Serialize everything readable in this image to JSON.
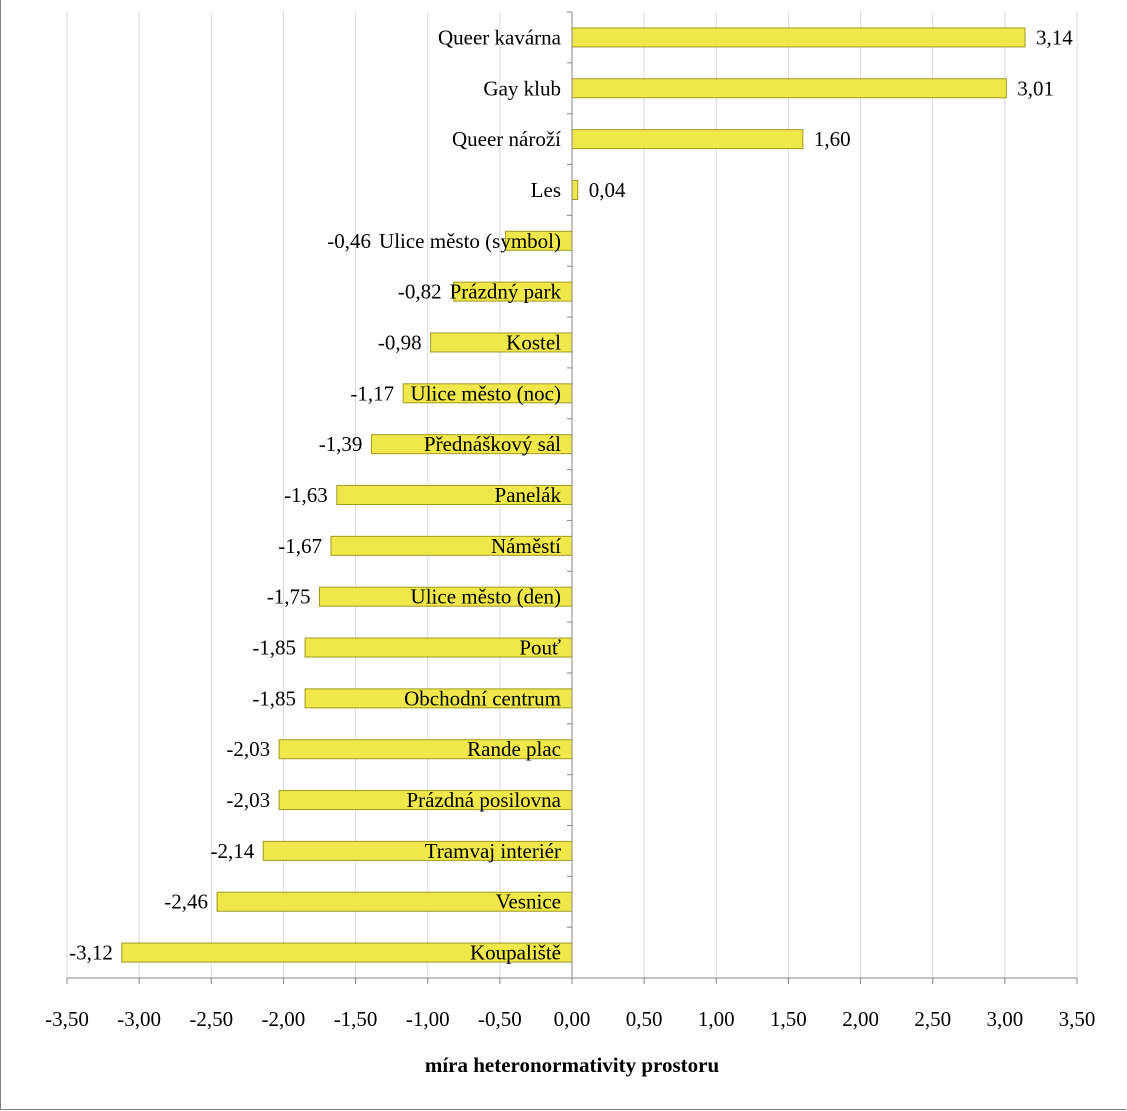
{
  "chart_data": {
    "type": "bar",
    "orientation": "horizontal",
    "categories": [
      "Queer kavárna",
      "Gay klub",
      "Queer nároží",
      "Les",
      "Ulice město (symbol)",
      "Prázdný park",
      "Kostel",
      "Ulice město (noc)",
      "Přednáškový sál",
      "Panelák",
      "Náměstí",
      "Ulice město (den)",
      "Pouť",
      "Obchodní centrum",
      "Rande plac",
      "Prázdná posilovna",
      "Tramvaj interiér",
      "Vesnice",
      "Koupaliště"
    ],
    "values": [
      3.14,
      3.01,
      1.6,
      0.04,
      -0.46,
      -0.82,
      -0.98,
      -1.17,
      -1.39,
      -1.63,
      -1.67,
      -1.75,
      -1.85,
      -1.85,
      -2.03,
      -2.03,
      -2.14,
      -2.46,
      -3.12
    ],
    "value_labels": [
      "3,14",
      "3,01",
      "1,60",
      "0,04",
      "-0,46",
      "-0,82",
      "-0,98",
      "-1,17",
      "-1,39",
      "-1,63",
      "-1,67",
      "-1,75",
      "-1,85",
      "-1,85",
      "-2,03",
      "-2,03",
      "-2,14",
      "-2,46",
      "-3,12"
    ],
    "xlabel": "míra heteronormativity prostoru",
    "ylabel": "",
    "title": "",
    "xlim": [
      -3.5,
      3.5
    ],
    "xticks": [
      -3.5,
      -3.0,
      -2.5,
      -2.0,
      -1.5,
      -1.0,
      -0.5,
      0.0,
      0.5,
      1.0,
      1.5,
      2.0,
      2.5,
      3.0,
      3.5
    ],
    "xtick_labels": [
      "-3,50",
      "-3,00",
      "-2,50",
      "-2,00",
      "-1,50",
      "-1,00",
      "-0,50",
      "0,00",
      "0,50",
      "1,00",
      "1,50",
      "2,00",
      "2,50",
      "3,00",
      "3,50"
    ],
    "grid": "vertical",
    "legend": "none",
    "bar_color": "#f0e84a",
    "bar_edge_color": "#a09a1e",
    "grid_color": "#d9d9d9",
    "axis_color": "#868686"
  }
}
